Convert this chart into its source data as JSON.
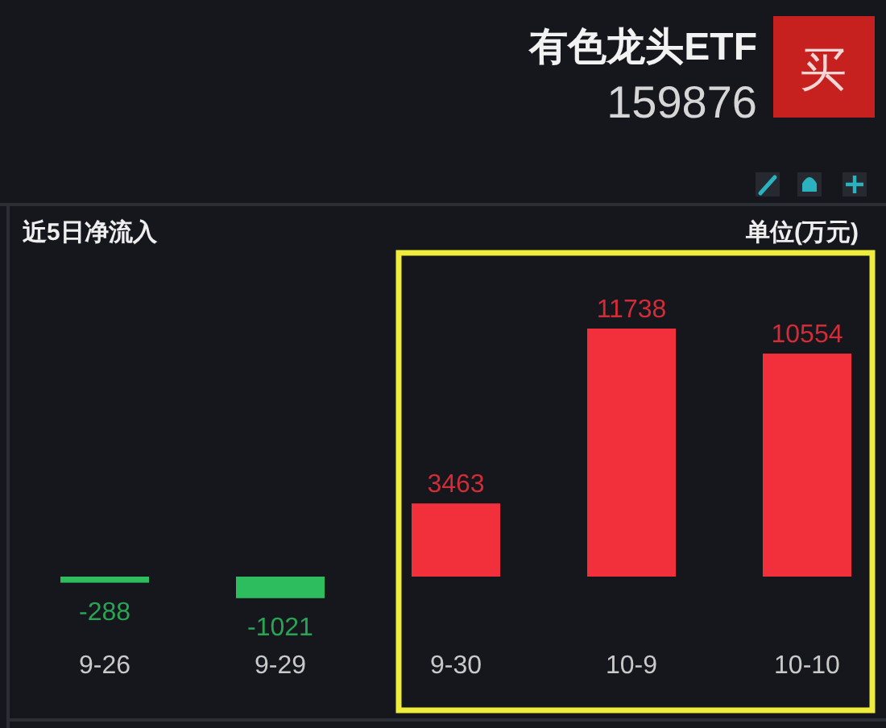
{
  "chart_data": {
    "type": "bar",
    "title": "近5日净流入",
    "annotations": [
      "有色龙头ETF",
      "159876",
      "买",
      "单位(万元)"
    ],
    "categories": [
      "9-26",
      "9-29",
      "9-30",
      "10-9",
      "10-10"
    ],
    "values": [
      -288,
      -1021,
      3463,
      11738,
      10554
    ],
    "colors": [
      "#2dbd5e",
      "#2dbd5e",
      "#f2303c",
      "#f2303c",
      "#f2303c"
    ],
    "data_labels": true
  }
}
